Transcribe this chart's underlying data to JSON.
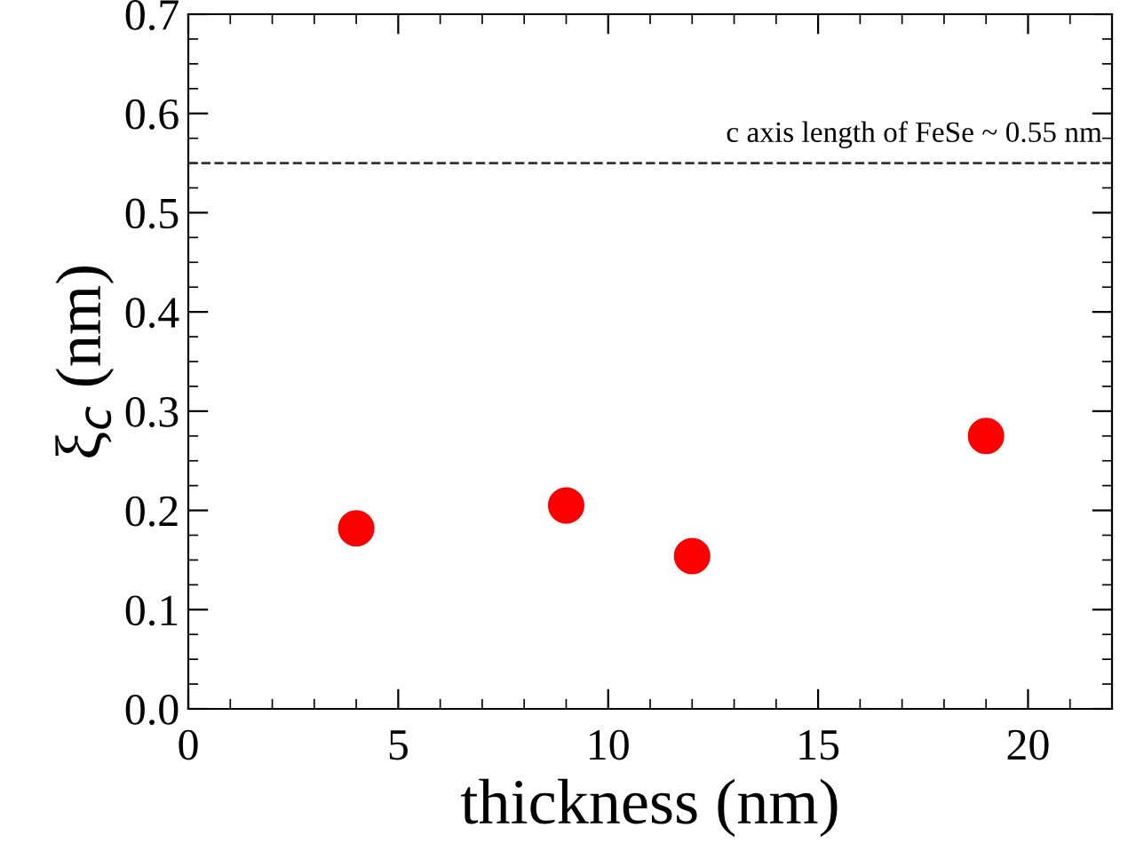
{
  "chart_data": {
    "type": "scatter",
    "xlabel": "thickness (nm)",
    "ylabel": "ξ$_{c}$ (nm)",
    "x": [
      4,
      9,
      12,
      19
    ],
    "series": [
      {
        "color": "#ff0000",
        "values": [
          0.182,
          0.205,
          0.154,
          0.275
        ]
      }
    ],
    "marker": "circle",
    "xlim": [
      0,
      22
    ],
    "xticks": [
      0,
      5,
      10,
      15,
      20
    ],
    "ylim": [
      0,
      0.7
    ],
    "yticks": [
      {
        "value": 0,
        "label": "0.0"
      },
      0.1,
      0.2,
      0.3,
      0.4,
      0.5,
      0.6,
      0.7
    ],
    "ref_lines": [
      {
        "axis": "y",
        "value": 0.55,
        "label": "c axis length of FeSe ~ 0.55 nm",
        "color": "#333333",
        "line_style": "dashed"
      }
    ],
    "grid": false,
    "legend": false
  }
}
